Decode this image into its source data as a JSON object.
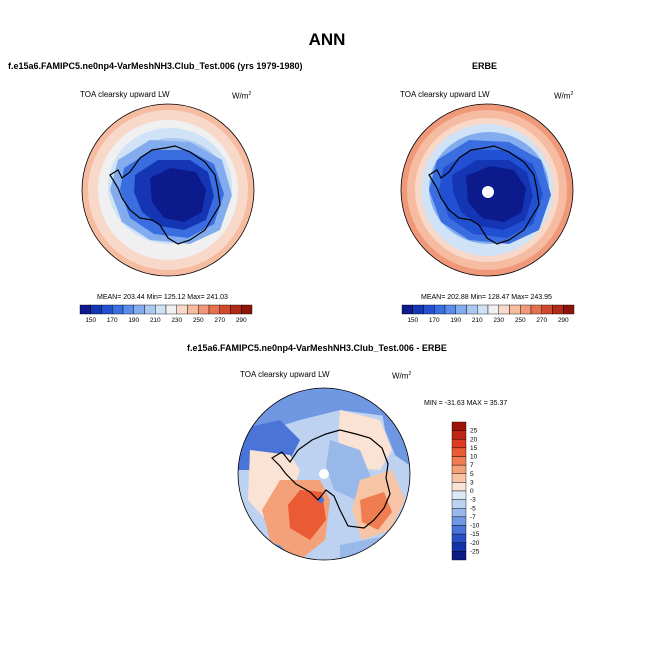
{
  "title": "ANN",
  "panels": {
    "model": {
      "title": "f.e15a6.FAMIPC5.ne0np4-VarMeshNH3.Club_Test.006 (yrs 1979-1980)",
      "variable": "TOA clearsky upward LW",
      "units": "W/m",
      "units_sup": "2",
      "stats": "MEAN= 203.44  Min= 125.12  Max= 241.03"
    },
    "obs": {
      "title": "ERBE",
      "variable": "TOA clearsky upward LW",
      "units": "W/m",
      "units_sup": "2",
      "stats": "MEAN= 202.88  Min= 128.47  Max= 243.95"
    },
    "diff": {
      "title": "f.e15a6.FAMIPC5.ne0np4-VarMeshNH3.Club_Test.006 - ERBE",
      "variable": "TOA clearsky upward LW",
      "units": "W/m",
      "units_sup": "2",
      "stats": "MIN = -31.63 MAX =  35.37"
    }
  },
  "colorbar_abs": {
    "labels": [
      "150",
      "170",
      "190",
      "210",
      "230",
      "250",
      "270",
      "290"
    ],
    "colors": [
      "#0c1a8c",
      "#1436b4",
      "#2250d2",
      "#3a6ee0",
      "#5a8ce8",
      "#82acee",
      "#aac8f2",
      "#d0e2f6",
      "#f0f0f0",
      "#f8d8c8",
      "#f6bca2",
      "#f0987a",
      "#e4704e",
      "#d0492c",
      "#b02a1a",
      "#8c1408"
    ]
  },
  "colorbar_diff": {
    "labels": [
      "25",
      "20",
      "15",
      "10",
      "7",
      "5",
      "3",
      "0",
      "-3",
      "-5",
      "-7",
      "-10",
      "-15",
      "-20",
      "-25"
    ],
    "colors": [
      "#9e1408",
      "#c02414",
      "#dc3c20",
      "#ea5a34",
      "#f07c52",
      "#f4a078",
      "#f8c4a6",
      "#fae2d4",
      "#dce8f6",
      "#bcd2f0",
      "#98b8ea",
      "#7098e2",
      "#4a74d8",
      "#2a50c8",
      "#1632a8",
      "#0c1a84"
    ]
  }
}
